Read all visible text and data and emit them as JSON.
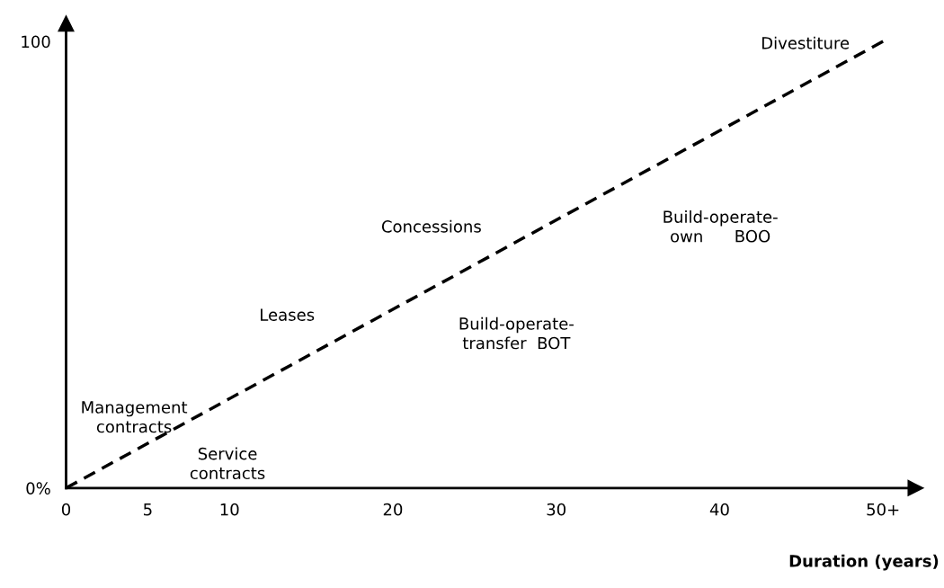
{
  "chart_data": {
    "type": "line",
    "xlabel": "Duration (years)",
    "x": [
      0,
      50
    ],
    "series": [
      {
        "color": "#000000",
        "values": [
          0,
          100
        ]
      }
    ],
    "line_style": "dashed",
    "marker": "none",
    "grid": false,
    "legend": false,
    "xlim": [
      0,
      52
    ],
    "ylim": [
      0,
      104
    ],
    "xticks": [
      0,
      5,
      10,
      20,
      30,
      40,
      {
        "value": 50,
        "label": "50+"
      }
    ],
    "yticks": [
      {
        "value": 0,
        "label": "0%"
      },
      100
    ],
    "annotations": [
      "Divestiture",
      "Concessions",
      "Build-operate-\nown      BOO",
      "Build-operate-\ntransfer  BOT",
      "Leases",
      "Management\ncontracts",
      "Service\ncontracts"
    ]
  }
}
